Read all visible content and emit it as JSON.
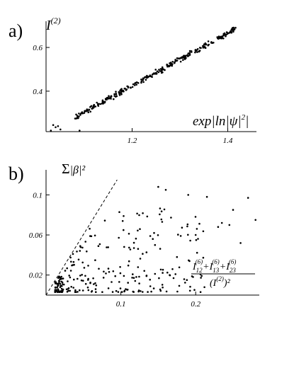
{
  "chart_data": [
    {
      "type": "scatter",
      "panel_label": "a)",
      "ylabel": "I(2)",
      "xlabel": "exp|ln|ψ|²|",
      "xlim": [
        1.02,
        1.46
      ],
      "ylim": [
        0.215,
        0.72
      ],
      "xticks": [
        1.2,
        1.4
      ],
      "yticks": [
        0.4,
        0.6
      ],
      "xtick_labels": [
        "1.2",
        "1.4"
      ],
      "ytick_labels": [
        "0.4",
        "0.6"
      ],
      "grid": false,
      "series": [
        {
          "description": "near-linear trend, ~300 points",
          "trend": {
            "x": [
              1.08,
              1.42
            ],
            "y": [
              0.28,
              0.69
            ]
          },
          "outliers": [
            [
              1.03,
              0.22
            ],
            [
              1.035,
              0.245
            ],
            [
              1.04,
              0.235
            ],
            [
              1.045,
              0.24
            ],
            [
              1.05,
              0.225
            ],
            [
              1.09,
              0.22
            ]
          ]
        }
      ]
    },
    {
      "type": "scatter",
      "panel_label": "b)",
      "ylabel": "Σ|β|²",
      "xlabel": "(I12(6)+I13(6)+I23(6))/(I(2))²",
      "xlim": [
        0,
        0.285
      ],
      "ylim": [
        0,
        0.125
      ],
      "xticks": [
        0.1,
        0.2
      ],
      "yticks": [
        0.02,
        0.06,
        0.1
      ],
      "xtick_labels": [
        "0.1",
        "0.2"
      ],
      "ytick_labels": [
        "0.02",
        "0.06",
        "0.1"
      ],
      "grid": false,
      "reference_line": {
        "style": "dashed",
        "from": [
          0.0,
          0.0
        ],
        "to": [
          0.095,
          0.115
        ]
      },
      "series": [
        {
          "description": "~300 points concentrated near origin, spreading outward below the dashed line",
          "far_points": [
            [
              0.15,
              0.108
            ],
            [
              0.16,
              0.105
            ],
            [
              0.19,
              0.1
            ],
            [
              0.215,
              0.098
            ],
            [
              0.27,
              0.097
            ],
            [
              0.28,
              0.075
            ],
            [
              0.25,
              0.085
            ],
            [
              0.26,
              0.052
            ],
            [
              0.23,
              0.068
            ],
            [
              0.235,
              0.072
            ],
            [
              0.245,
              0.07
            ],
            [
              0.2,
              0.06
            ],
            [
              0.175,
              0.038
            ]
          ]
        }
      ]
    }
  ],
  "labels": {
    "a_letter": "a)",
    "a_ylabel": "I",
    "a_ylabel_sup": "(2)",
    "a_xlabel_pre": "exp|ln|ψ|",
    "a_xlabel_sup": "2",
    "a_xlabel_post": "|",
    "b_letter": "b)",
    "b_ylabel_sigma": "Σ",
    "b_ylabel_body": "|β|²",
    "b_num_I12": "I",
    "b_num_12": "12",
    "b_num_13": "13",
    "b_num_23": "23",
    "b_num_sup": "(6)",
    "b_plus": "+",
    "b_den_pre": "(I",
    "b_den_sup": "(2)",
    "b_den_post": ")²"
  }
}
